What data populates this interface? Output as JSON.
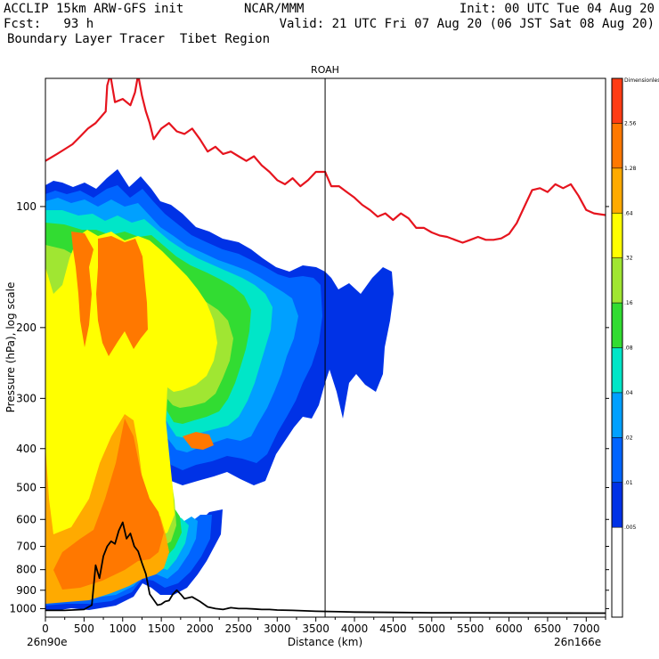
{
  "header": {
    "line1_left": "ACCLIP 15km ARW-GFS init",
    "line1_mid": "NCAR/MMM",
    "line1_right": "Init: 00 UTC Tue 04 Aug 20",
    "line2_left": "Fcst:   93 h",
    "line2_right": "Valid: 21 UTC Fri 07 Aug 20 (06 JST Sat 08 Aug 20)",
    "line3_left": "Boundary Layer Tracer  Tibet Region"
  },
  "chart_data": {
    "type": "heatmap",
    "title": "ROAH",
    "xlabel": "Distance (km)",
    "ylabel": "Pressure (hPa), log scale",
    "x_start_label": "26n90e",
    "x_end_label": "26n166e",
    "xlim": [
      0,
      7250
    ],
    "ylim": [
      1050,
      48
    ],
    "y_scale": "log",
    "x_ticks": [
      0,
      500,
      1000,
      1500,
      2000,
      2500,
      3000,
      3500,
      4000,
      4500,
      5000,
      5500,
      6000,
      6500,
      7000
    ],
    "y_ticks": [
      100,
      200,
      300,
      400,
      500,
      600,
      700,
      800,
      900,
      1000
    ],
    "vertical_marker_km": 3620,
    "colorbar": {
      "title": "Dimensionless",
      "levels": [
        "",
        "2.56",
        "1.28",
        ".64",
        ".32",
        ".16",
        ".08",
        ".04",
        ".02",
        ".01",
        ".005"
      ],
      "colors": [
        "#ff3c14",
        "#ff7800",
        "#ffaa00",
        "#ffff00",
        "#a0e632",
        "#32dc32",
        "#00e6c8",
        "#00a0ff",
        "#0064ff",
        "#0032e6",
        "#ffffff",
        "#ffffff"
      ]
    },
    "series": [
      {
        "name": "tropopause",
        "color": "#e6141e",
        "x": [
          0,
          150,
          250,
          350,
          450,
          550,
          650,
          780,
          800,
          840,
          900,
          1000,
          1100,
          1160,
          1200,
          1250,
          1300,
          1350,
          1400,
          1500,
          1600,
          1700,
          1800,
          1900,
          2000,
          2100,
          2200,
          2300,
          2400,
          2500,
          2600,
          2700,
          2800,
          2900,
          3000,
          3100,
          3200,
          3300,
          3400,
          3500,
          3620,
          3700,
          3800,
          3900,
          4000,
          4100,
          4200,
          4300,
          4400,
          4500,
          4600,
          4700,
          4800,
          4900,
          5000,
          5100,
          5200,
          5300,
          5400,
          5500,
          5600,
          5700,
          5800,
          5900,
          6000,
          6100,
          6200,
          6300,
          6400,
          6500,
          6600,
          6700,
          6800,
          6900,
          7000,
          7100,
          7250
        ],
        "y": [
          77,
          74,
          72,
          70,
          67,
          64,
          62,
          58,
          50,
          47,
          55,
          54,
          56,
          52,
          47,
          53,
          58,
          62,
          68,
          64,
          62,
          65,
          66,
          64,
          68,
          73,
          71,
          74,
          73,
          75,
          77,
          75,
          79,
          82,
          86,
          88,
          85,
          89,
          86,
          82,
          82,
          89,
          89,
          92,
          95,
          99,
          102,
          106,
          104,
          108,
          104,
          107,
          113,
          113,
          116,
          118,
          119,
          121,
          123,
          121,
          119,
          121,
          121,
          120,
          117,
          110,
          100,
          91,
          90,
          92,
          88,
          90,
          88,
          94,
          102,
          104,
          105
        ]
      },
      {
        "name": "terrain",
        "color": "#000000",
        "x": [
          0,
          250,
          500,
          600,
          650,
          700,
          750,
          800,
          850,
          900,
          950,
          1000,
          1050,
          1100,
          1150,
          1200,
          1250,
          1300,
          1350,
          1400,
          1450,
          1500,
          1550,
          1600,
          1650,
          1700,
          1750,
          1800,
          1900,
          2000,
          2100,
          2200,
          2300,
          2400,
          2500,
          2600,
          2700,
          2800,
          2900,
          3000,
          3200,
          3500,
          3800,
          4000,
          4500,
          5000,
          6000,
          7250
        ],
        "y": [
          1010,
          1010,
          1005,
          980,
          780,
          840,
          740,
          700,
          680,
          690,
          640,
          610,
          670,
          650,
          700,
          720,
          770,
          820,
          920,
          950,
          980,
          975,
          960,
          955,
          920,
          900,
          920,
          945,
          935,
          960,
          990,
          1000,
          1005,
          995,
          1000,
          1000,
          1002,
          1005,
          1005,
          1008,
          1010,
          1015,
          1018,
          1020,
          1022,
          1024,
          1025,
          1026
        ]
      }
    ]
  }
}
